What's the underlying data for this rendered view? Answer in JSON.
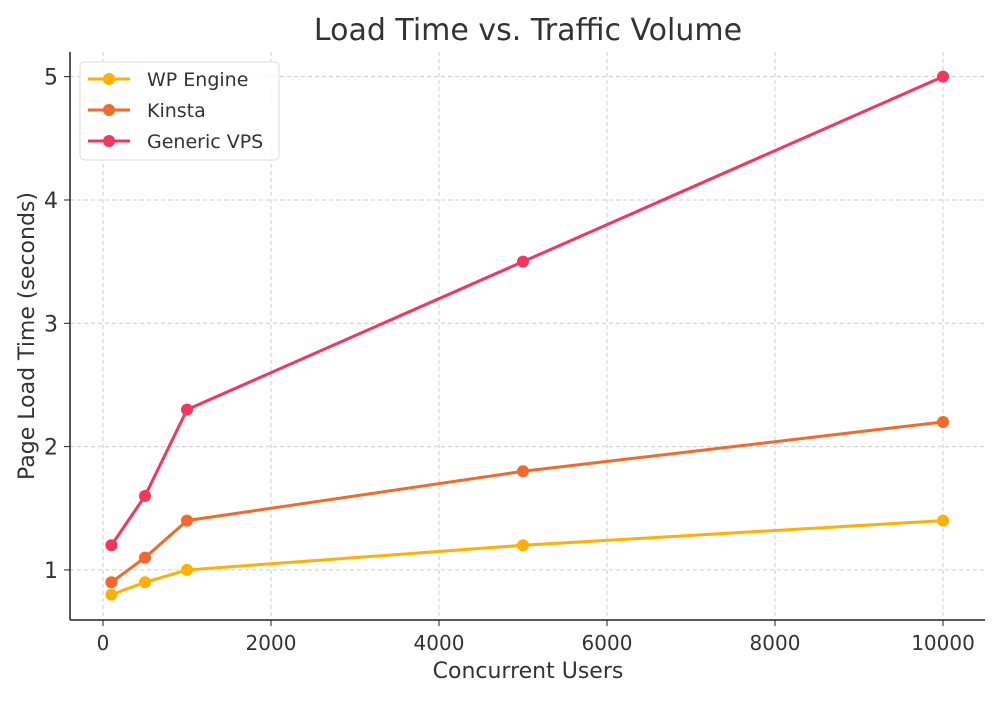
{
  "chart_data": {
    "type": "line",
    "title": "Load Time vs. Traffic Volume",
    "xlabel": "Concurrent Users",
    "ylabel": "Page Load Time (seconds)",
    "x": [
      100,
      500,
      1000,
      5000,
      10000
    ],
    "xlim": [
      -393,
      10500
    ],
    "ylim": [
      0.594,
      5.2
    ],
    "xticks": [
      0,
      2000,
      4000,
      6000,
      8000,
      10000
    ],
    "yticks": [
      1,
      2,
      3,
      4,
      5
    ],
    "grid": true,
    "legend_placement": "top-left",
    "series": [
      {
        "name": "WP Engine",
        "color": "#FFB000",
        "values": [
          0.8,
          0.9,
          1.0,
          1.2,
          1.4
        ]
      },
      {
        "name": "Kinsta",
        "color": "#F2692A",
        "values": [
          0.9,
          1.1,
          1.4,
          1.8,
          2.2
        ]
      },
      {
        "name": "Generic VPS",
        "color": "#F5365C",
        "values": [
          1.2,
          1.6,
          2.3,
          3.5,
          5.0
        ]
      }
    ]
  }
}
